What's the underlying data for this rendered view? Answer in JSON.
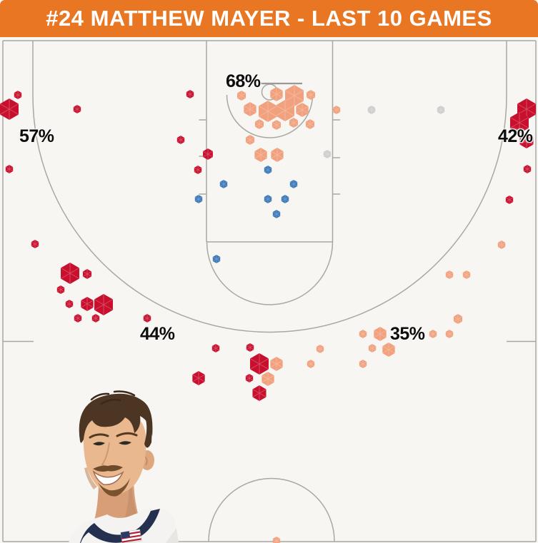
{
  "header": {
    "title": "#24 MATTHEW MAYER - LAST 10 GAMES"
  },
  "colors": {
    "banner_orange": "#E87622",
    "court_background": "#F8F6F3",
    "court_lines": "#A9A7A3",
    "label_text": "#0D0D0D",
    "shot_red": "#C8102E",
    "shot_peach": "#F1A17D",
    "shot_blue": "#3D79B8",
    "shot_gray": "#CDCDCD"
  },
  "player": {
    "jersey_number": "24",
    "name": "MATTHEW MAYER",
    "photo_alt": "headshot of player in white jersey with navy collar and USA flag patch"
  },
  "chart_data": {
    "type": "scatter",
    "subtype": "hexbin_shot_chart",
    "title": "#24 MATTHEW MAYER - LAST 10 GAMES",
    "coordinate_space": {
      "x_range": [
        0,
        753
      ],
      "y_range": [
        52,
        761
      ],
      "units": "px"
    },
    "point_format": [
      "x_px",
      "y_px",
      "hex_radius_px"
    ],
    "zones": [
      {
        "label": "68%",
        "value": 68,
        "x": 316,
        "y": 100
      },
      {
        "label": "57%",
        "value": 57,
        "x": 27,
        "y": 177
      },
      {
        "label": "42%",
        "value": 42,
        "x": 697,
        "y": 177
      },
      {
        "label": "44%",
        "value": 44,
        "x": 196,
        "y": 454
      },
      {
        "label": "35%",
        "value": 35,
        "x": 546,
        "y": 454
      }
    ],
    "series": [
      {
        "name": "red",
        "color": "#C8102E",
        "points": [
          [
            25,
            133,
            6
          ],
          [
            13,
            153,
            15
          ],
          [
            108,
            153,
            6
          ],
          [
            13,
            237,
            6
          ],
          [
            266,
            132,
            6
          ],
          [
            253,
            196,
            6
          ],
          [
            291,
            216,
            8
          ],
          [
            277,
            238,
            6
          ],
          [
            737,
            153,
            15
          ],
          [
            727,
            172,
            15
          ],
          [
            737,
            197,
            11
          ],
          [
            738,
            237,
            6
          ],
          [
            713,
            280,
            6
          ],
          [
            49,
            342,
            6
          ],
          [
            98,
            383,
            15
          ],
          [
            122,
            384,
            7
          ],
          [
            85,
            406,
            6
          ],
          [
            97,
            426,
            6
          ],
          [
            122,
            426,
            10
          ],
          [
            145,
            427,
            15
          ],
          [
            109,
            446,
            6
          ],
          [
            134,
            446,
            6
          ],
          [
            206,
            446,
            6
          ],
          [
            302,
            488,
            6
          ],
          [
            350,
            487,
            6
          ],
          [
            363,
            510,
            15
          ],
          [
            349,
            530,
            6
          ],
          [
            278,
            530,
            10
          ],
          [
            363,
            551,
            11
          ]
        ]
      },
      {
        "name": "peach",
        "color": "#F1A17D",
        "points": [
          [
            338,
            134,
            7
          ],
          [
            387,
            132,
            10
          ],
          [
            412,
            134,
            15
          ],
          [
            435,
            133,
            7
          ],
          [
            350,
            153,
            10
          ],
          [
            375,
            156,
            15
          ],
          [
            399,
            155,
            15
          ],
          [
            423,
            154,
            10
          ],
          [
            471,
            154,
            6
          ],
          [
            363,
            174,
            7
          ],
          [
            387,
            175,
            7
          ],
          [
            411,
            172,
            7
          ],
          [
            434,
            174,
            7
          ],
          [
            350,
            196,
            7
          ],
          [
            365,
            217,
            10
          ],
          [
            388,
            217,
            10
          ],
          [
            702,
            343,
            6
          ],
          [
            629,
            385,
            6
          ],
          [
            653,
            385,
            6
          ],
          [
            641,
            447,
            7
          ],
          [
            508,
            468,
            6
          ],
          [
            532,
            468,
            10
          ],
          [
            606,
            468,
            6
          ],
          [
            629,
            468,
            6
          ],
          [
            448,
            489,
            6
          ],
          [
            521,
            488,
            6
          ],
          [
            544,
            490,
            10
          ],
          [
            435,
            510,
            6
          ],
          [
            508,
            510,
            6
          ],
          [
            387,
            510,
            10
          ],
          [
            375,
            531,
            10
          ],
          [
            387,
            758,
            6
          ]
        ]
      },
      {
        "name": "blue",
        "color": "#3D79B8",
        "points": [
          [
            375,
            238,
            6
          ],
          [
            313,
            258,
            6
          ],
          [
            411,
            258,
            6
          ],
          [
            278,
            279,
            6
          ],
          [
            375,
            279,
            6
          ],
          [
            399,
            279,
            6
          ],
          [
            387,
            300,
            6
          ],
          [
            303,
            363,
            6
          ]
        ]
      },
      {
        "name": "gray",
        "color": "#CDCDCD",
        "points": [
          [
            458,
            216,
            6
          ],
          [
            520,
            154,
            6
          ],
          [
            617,
            154,
            6
          ]
        ]
      }
    ]
  }
}
